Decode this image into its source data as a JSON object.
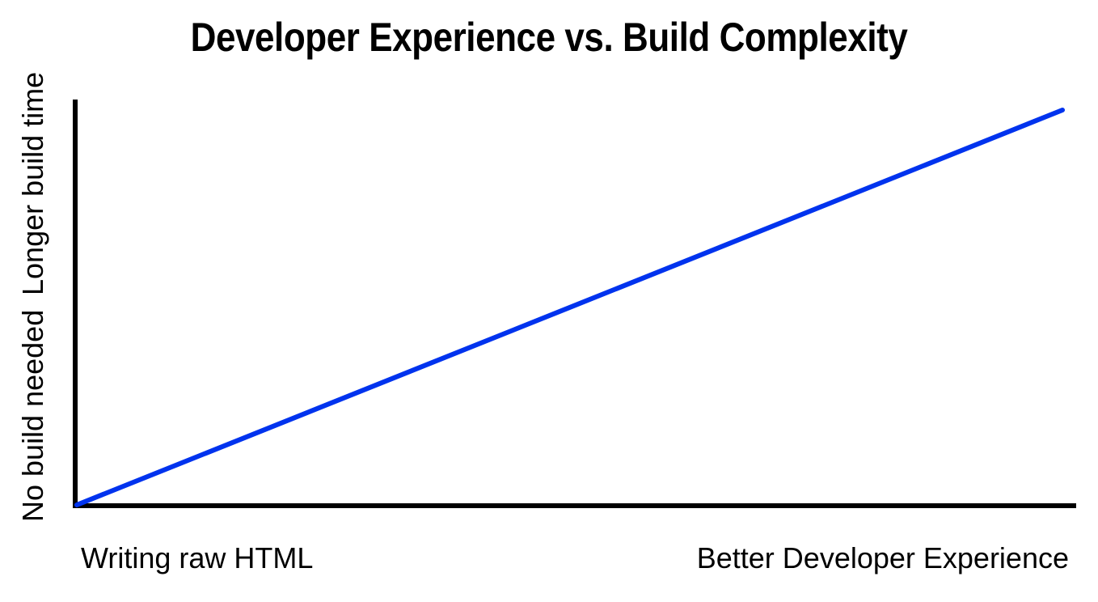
{
  "title": "Developer Experience vs. Build Complexity",
  "chart_data": {
    "type": "line",
    "title": "Developer Experience vs. Build Complexity",
    "x_tick_labels": [
      "Writing raw HTML",
      "Better Developer Experience"
    ],
    "y_tick_labels": [
      "No build needed",
      "Longer build time"
    ],
    "x": [
      0,
      1
    ],
    "series": [
      {
        "values": [
          0,
          1
        ],
        "color": "#0033ee"
      }
    ],
    "xlim": [
      0,
      1
    ],
    "ylim": [
      0,
      1
    ],
    "grid": false,
    "legend": "none"
  },
  "colors": {
    "axis": "#000000",
    "line": "#0033ee",
    "background": "#ffffff"
  }
}
